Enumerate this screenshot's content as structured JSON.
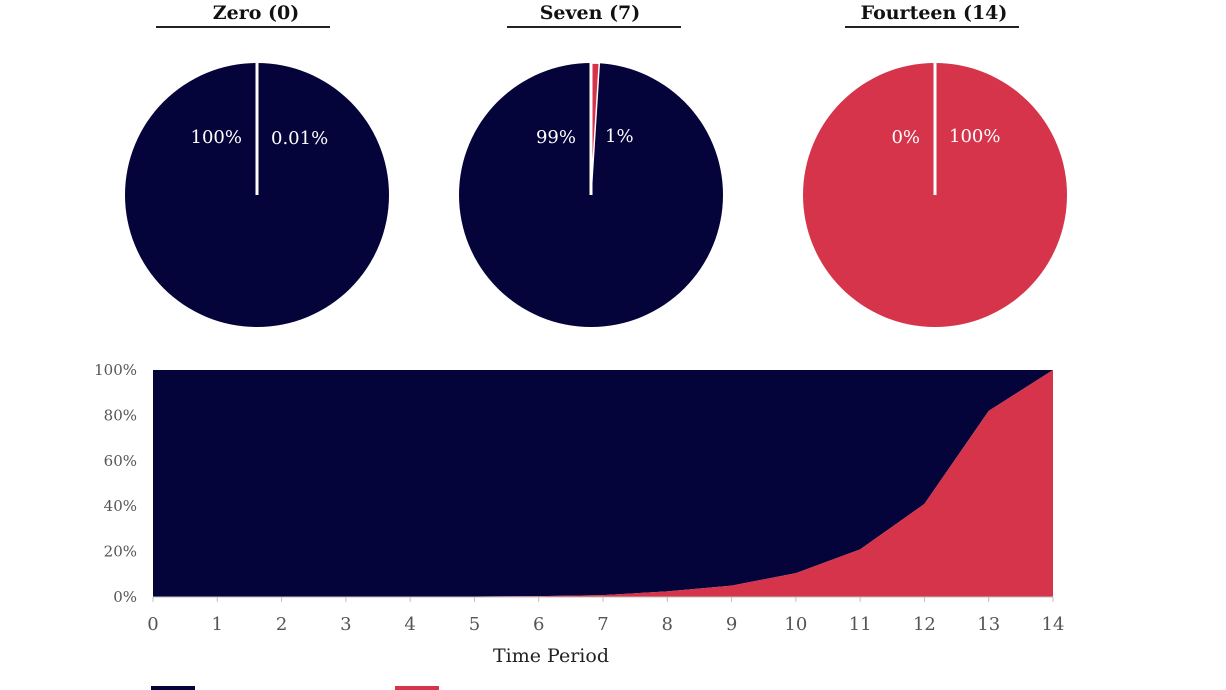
{
  "colors": {
    "navy": "#05043a",
    "red": "#d6344b"
  },
  "chart_data": [
    {
      "type": "pie",
      "title": "Zero (0)",
      "slices": [
        {
          "label": "100%",
          "value": 99.99,
          "color": "#05043a"
        },
        {
          "label": "0.01%",
          "value": 0.01,
          "color": "#d6344b"
        }
      ]
    },
    {
      "type": "pie",
      "title": "Seven (7)",
      "slices": [
        {
          "label": "99%",
          "value": 99,
          "color": "#05043a"
        },
        {
          "label": "1%",
          "value": 1,
          "color": "#d6344b"
        }
      ]
    },
    {
      "type": "pie",
      "title": "Fourteen (14)",
      "slices": [
        {
          "label": "0%",
          "value": 0,
          "color": "#05043a"
        },
        {
          "label": "100%",
          "value": 100,
          "color": "#d6344b"
        }
      ]
    },
    {
      "type": "area",
      "stacked": "percent",
      "x": [
        0,
        1,
        2,
        3,
        4,
        5,
        6,
        7,
        8,
        9,
        10,
        11,
        12,
        13,
        14
      ],
      "xlabel": "Time Period",
      "ylabel": "",
      "ylim": [
        0,
        100
      ],
      "yticks": [
        "0%",
        "20%",
        "40%",
        "60%",
        "80%",
        "100%"
      ],
      "series": [
        {
          "color": "#d6344b",
          "values": [
            0,
            0,
            0,
            0,
            0.1,
            0.2,
            0.4,
            0.8,
            2.5,
            5,
            10.5,
            21,
            41,
            82,
            100
          ]
        },
        {
          "color": "#05043a",
          "values": [
            100,
            100,
            100,
            100,
            99.9,
            99.8,
            99.6,
            99.2,
            97.5,
            95,
            89.5,
            79,
            59,
            18,
            0
          ]
        }
      ],
      "grid": false,
      "legend": "bottom"
    }
  ]
}
